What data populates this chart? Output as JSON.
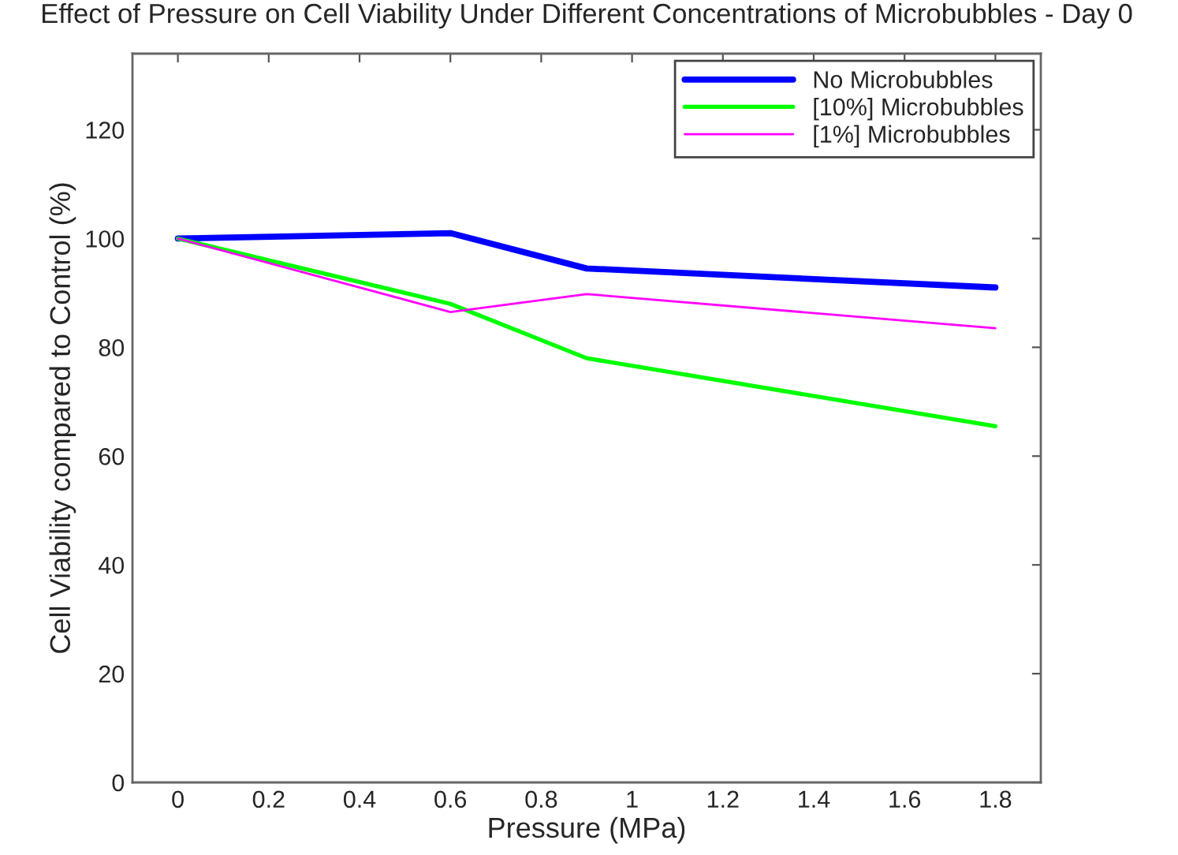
{
  "chart_data": {
    "type": "line",
    "title": "Effect of Pressure on Cell Viability Under Different Concentrations of Microbubbles - Day 0",
    "xlabel": "Pressure (MPa)",
    "ylabel": "Cell Viability compared to Control (%)",
    "x": [
      0,
      0.6,
      0.9,
      1.8
    ],
    "series": [
      {
        "name": "No Microbubbles",
        "color": "#0000ff",
        "values": [
          100,
          101,
          94.5,
          91
        ]
      },
      {
        "name": "[10%] Microbubbles",
        "color": "#00ff00",
        "values": [
          100,
          88,
          78,
          65.5
        ]
      },
      {
        "name": "[1%] Microbubbles",
        "color": "#ff00ff",
        "values": [
          100,
          86.5,
          89.8,
          83.5
        ]
      }
    ],
    "xlim": [
      -0.1,
      1.9
    ],
    "xticks": [
      0,
      0.2,
      0.4,
      0.6,
      0.8,
      1,
      1.2,
      1.4,
      1.6,
      1.8
    ],
    "ylim": [
      0,
      134
    ],
    "yticks": [
      0,
      20,
      40,
      60,
      80,
      100,
      120
    ],
    "grid": false,
    "legend": "top right"
  }
}
